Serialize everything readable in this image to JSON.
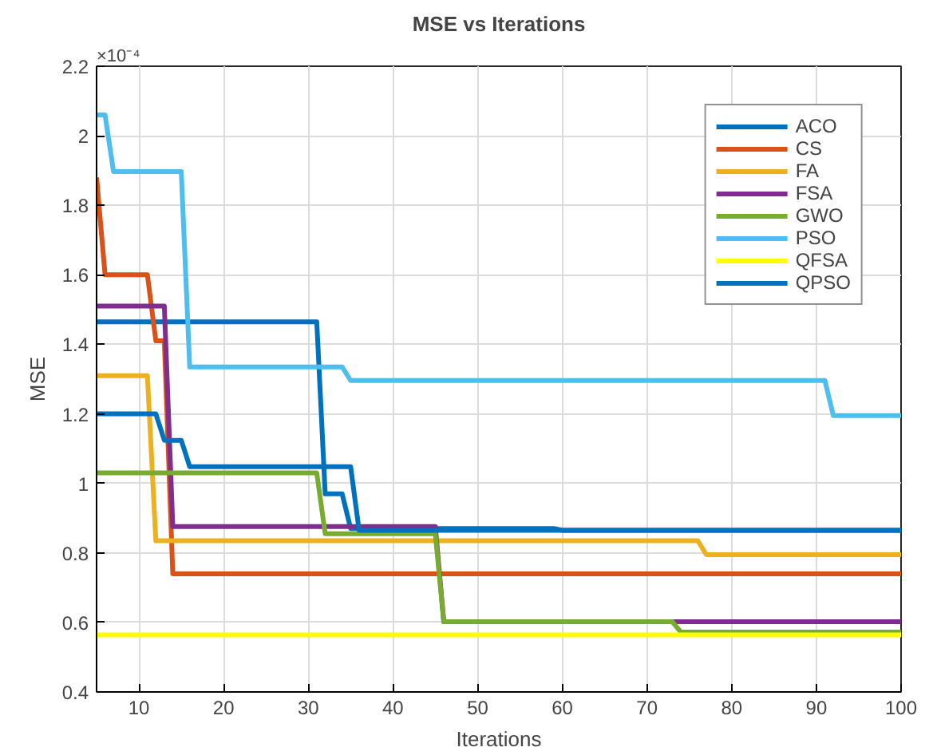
{
  "chart_data": {
    "type": "line",
    "title": "MSE vs Iterations",
    "xlabel": "Iterations",
    "ylabel": "MSE",
    "annotations": [
      "×10⁻⁴"
    ],
    "xlim": [
      5,
      100
    ],
    "xticks": [
      10,
      20,
      30,
      40,
      50,
      60,
      70,
      80,
      90,
      100
    ],
    "ylim": [
      0.4,
      2.2
    ],
    "yticks": [
      0.4,
      0.6,
      0.8,
      1,
      1.2,
      1.4,
      1.6,
      1.8,
      2,
      2.2
    ],
    "grid": true,
    "legend": "top right",
    "line_style": "solid",
    "marker": "none",
    "series": [
      {
        "name": "ACO",
        "color": "#0072bd",
        "x": [
          5,
          31,
          32,
          34,
          35,
          59,
          60,
          100
        ],
        "values": [
          1.465,
          1.465,
          0.97,
          0.97,
          0.87,
          0.87,
          0.865,
          0.865
        ]
      },
      {
        "name": "CS",
        "color": "#d95319",
        "x": [
          5,
          6,
          11,
          12,
          13,
          14,
          100
        ],
        "values": [
          1.88,
          1.6,
          1.6,
          1.41,
          1.41,
          0.74,
          0.74
        ]
      },
      {
        "name": "FA",
        "color": "#edb120",
        "x": [
          5,
          11,
          12,
          76,
          77,
          100
        ],
        "values": [
          1.31,
          1.31,
          0.835,
          0.835,
          0.795,
          0.795
        ]
      },
      {
        "name": "FSA",
        "color": "#7e2f8e",
        "x": [
          5,
          13,
          14,
          45,
          46,
          100
        ],
        "values": [
          1.51,
          1.51,
          0.876,
          0.876,
          0.602,
          0.602
        ]
      },
      {
        "name": "GWO",
        "color": "#77ac30",
        "x": [
          5,
          31,
          32,
          45,
          46,
          73,
          74,
          100
        ],
        "values": [
          1.03,
          1.03,
          0.855,
          0.855,
          0.602,
          0.602,
          0.572,
          0.572
        ]
      },
      {
        "name": "PSO",
        "color": "#4dbeee",
        "x": [
          5,
          6,
          7,
          15,
          16,
          34,
          35,
          91,
          92,
          100
        ],
        "values": [
          2.06,
          2.06,
          1.897,
          1.897,
          1.335,
          1.335,
          1.296,
          1.296,
          1.195,
          1.195
        ]
      },
      {
        "name": "QFSA",
        "color": "#ffff00",
        "x": [
          5,
          100
        ],
        "values": [
          0.564,
          0.564
        ]
      },
      {
        "name": "QPSO",
        "color": "#0072bd",
        "x": [
          5,
          12,
          13,
          15,
          16,
          35,
          36,
          100
        ],
        "values": [
          1.2,
          1.2,
          1.124,
          1.124,
          1.048,
          1.048,
          0.865,
          0.865
        ]
      }
    ]
  }
}
